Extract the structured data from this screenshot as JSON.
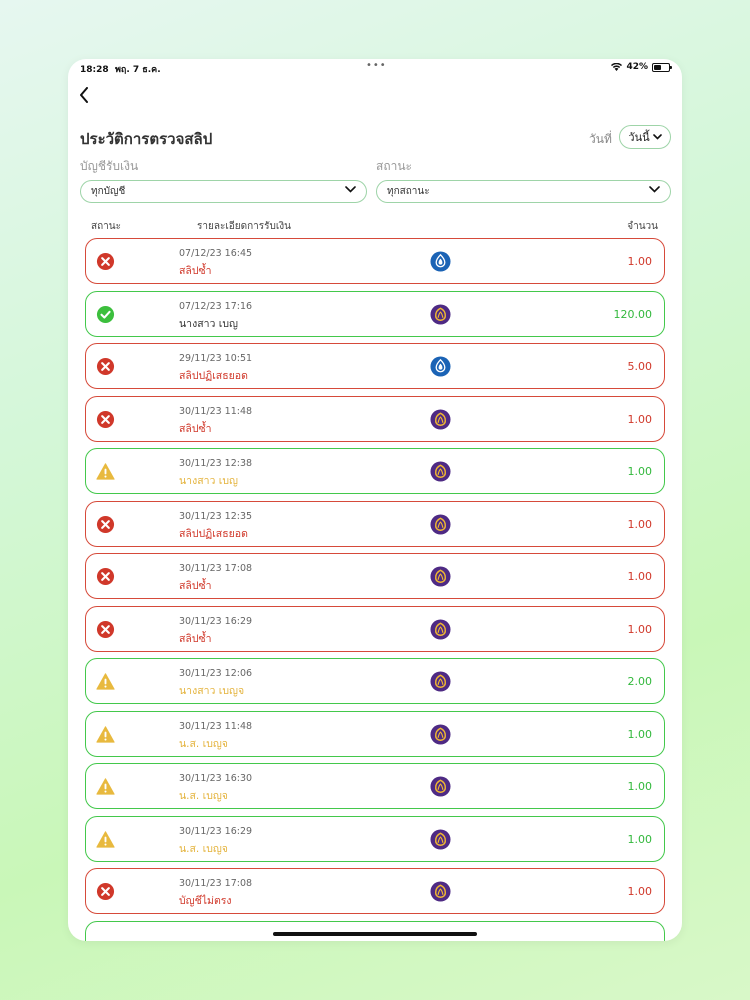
{
  "status_bar": {
    "time": "18:28",
    "date": "พฤ. 7 ธ.ค.",
    "battery": "42%"
  },
  "header": {
    "title": "ประวัติการตรวจสลิป",
    "date_label": "วันที่",
    "date_value": "วันนี้"
  },
  "filters": {
    "account_label": "บัญชีรับเงิน",
    "account_value": "ทุกบัญชี",
    "status_label": "สถานะ",
    "status_value": "ทุกสถานะ"
  },
  "columns": {
    "status": "สถานะ",
    "details": "รายละเอียดการรับเงิน",
    "amount": "จำนวน"
  },
  "colors": {
    "error": "#d0382a",
    "success": "#33b83d",
    "warning": "#e4b33c",
    "kbank": "#1b63b5",
    "scb": "#4e2a84"
  },
  "rows": [
    {
      "status": "error",
      "date": "07/12/23 16:45",
      "detail": "สลิปซ้ำ",
      "bank": "kbank",
      "amount": "1.00",
      "color": "red"
    },
    {
      "status": "success",
      "date": "07/12/23 17:16",
      "detail": "นางสาว เบญ",
      "bank": "scb",
      "amount": "120.00",
      "color": "green"
    },
    {
      "status": "error",
      "date": "29/11/23 10:51",
      "detail": "สลิปปฏิเสธยอด",
      "bank": "kbank",
      "amount": "5.00",
      "color": "red"
    },
    {
      "status": "error",
      "date": "30/11/23 11:48",
      "detail": "สลิปซ้ำ",
      "bank": "scb",
      "amount": "1.00",
      "color": "red"
    },
    {
      "status": "warning",
      "date": "30/11/23 12:38",
      "detail": "นางสาว เบญ",
      "bank": "scb",
      "amount": "1.00",
      "color": "green"
    },
    {
      "status": "error",
      "date": "30/11/23 12:35",
      "detail": "สลิปปฏิเสธยอด",
      "bank": "scb",
      "amount": "1.00",
      "color": "red"
    },
    {
      "status": "error",
      "date": "30/11/23 17:08",
      "detail": "สลิปซ้ำ",
      "bank": "scb",
      "amount": "1.00",
      "color": "red"
    },
    {
      "status": "error",
      "date": "30/11/23 16:29",
      "detail": "สลิปซ้ำ",
      "bank": "scb",
      "amount": "1.00",
      "color": "red"
    },
    {
      "status": "warning",
      "date": "30/11/23 12:06",
      "detail": "นางสาว เบญจ",
      "bank": "scb",
      "amount": "2.00",
      "color": "green"
    },
    {
      "status": "warning",
      "date": "30/11/23 11:48",
      "detail": "น.ส. เบญจ",
      "bank": "scb",
      "amount": "1.00",
      "color": "green"
    },
    {
      "status": "warning",
      "date": "30/11/23 16:30",
      "detail": "น.ส. เบญจ",
      "bank": "scb",
      "amount": "1.00",
      "color": "green"
    },
    {
      "status": "warning",
      "date": "30/11/23 16:29",
      "detail": "น.ส. เบญจ",
      "bank": "scb",
      "amount": "1.00",
      "color": "green"
    },
    {
      "status": "error",
      "date": "30/11/23 17:08",
      "detail": "บัญชีไม่ตรง",
      "bank": "scb",
      "amount": "1.00",
      "color": "red"
    }
  ]
}
